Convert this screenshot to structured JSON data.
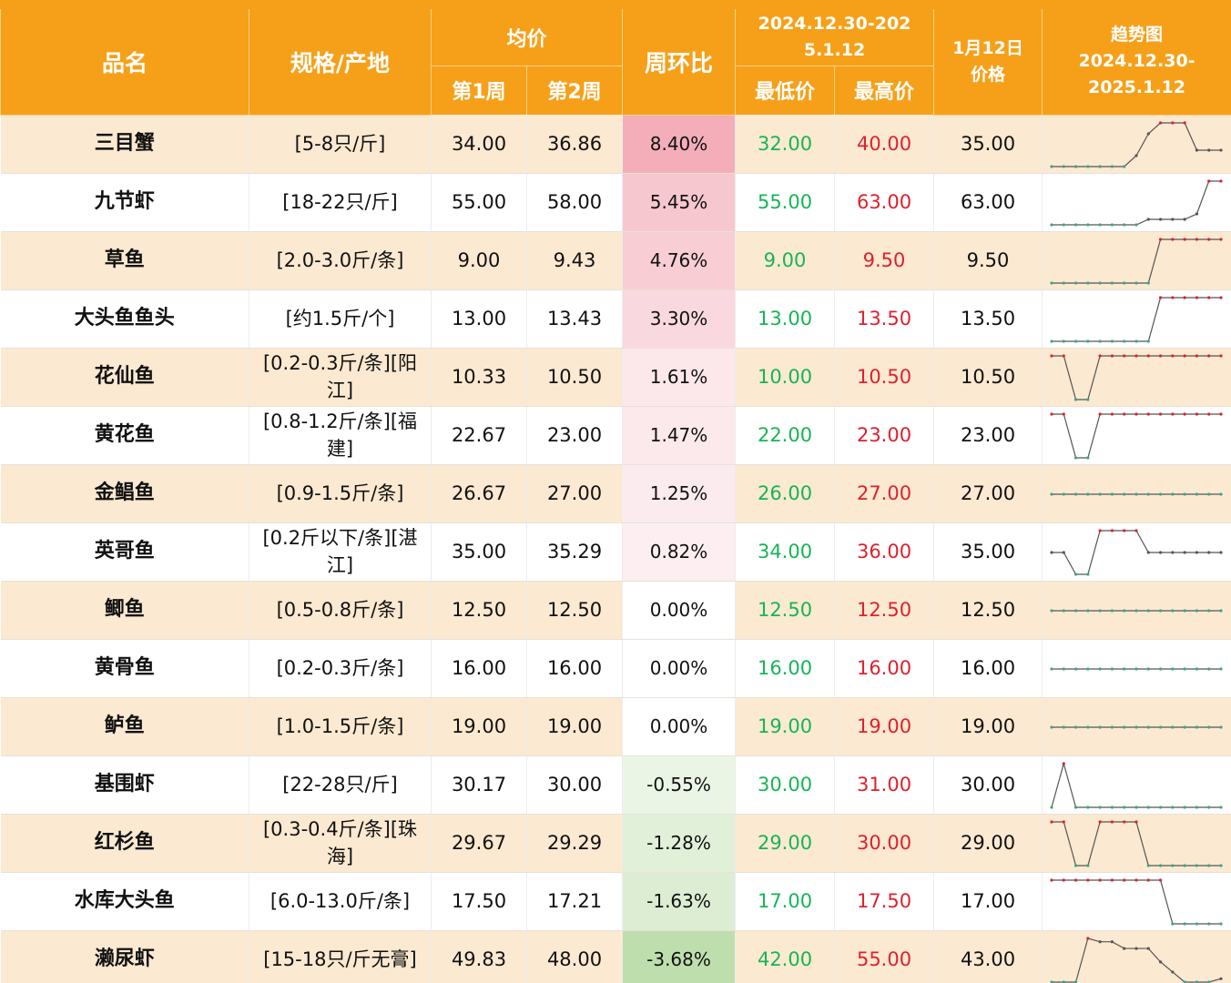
{
  "header": {
    "col_name": "品名",
    "col_spec": "规格/产地",
    "col_avg": "均价",
    "col_week1": "第1周",
    "col_week2": "第2周",
    "col_wow": "周环比",
    "col_range": "2024.12.30-2025.1.12",
    "col_low": "最低价",
    "col_high": "最高价",
    "col_today_l1": "1月12日",
    "col_today_l2": "价格",
    "col_trend_l1": "趋势图",
    "col_trend_l2": "2024.12.30-",
    "col_trend_l3": "2025.1.12"
  },
  "colors": {
    "header_bg": "#f6a019",
    "row_alt_bg": "#fbe9d1",
    "low_price": "#16b556",
    "high_price": "#e0202e",
    "positive_change": "#f4b8c0",
    "negative_change": "#c6e2b8"
  },
  "rows": [
    {
      "name": "三目蟹",
      "spec": "[5-8只/斤]",
      "w1": "34.00",
      "w2": "36.86",
      "wow": "8.40%",
      "low": "32.00",
      "high": "40.00",
      "jan12": "35.00",
      "wow_value": 8.4,
      "trend": [
        32,
        32,
        32,
        32,
        32,
        32,
        32,
        34,
        38,
        40,
        40,
        40,
        35,
        35,
        35
      ]
    },
    {
      "name": "九节虾",
      "spec": "[18-22只/斤]",
      "w1": "55.00",
      "w2": "58.00",
      "wow": "5.45%",
      "low": "55.00",
      "high": "63.00",
      "jan12": "63.00",
      "wow_value": 5.45,
      "trend": [
        55,
        55,
        55,
        55,
        55,
        55,
        55,
        55,
        56,
        56,
        56,
        56,
        57,
        63,
        63
      ]
    },
    {
      "name": "草鱼",
      "spec": "[2.0-3.0斤/条]",
      "w1": "9.00",
      "w2": "9.43",
      "wow": "4.76%",
      "low": "9.00",
      "high": "9.50",
      "jan12": "9.50",
      "wow_value": 4.76,
      "trend": [
        9,
        9,
        9,
        9,
        9,
        9,
        9,
        9,
        9,
        9.5,
        9.5,
        9.5,
        9.5,
        9.5,
        9.5
      ]
    },
    {
      "name": "大头鱼鱼头",
      "spec": "[约1.5斤/个]",
      "w1": "13.00",
      "w2": "13.43",
      "wow": "3.30%",
      "low": "13.00",
      "high": "13.50",
      "jan12": "13.50",
      "wow_value": 3.3,
      "trend": [
        13,
        13,
        13,
        13,
        13,
        13,
        13,
        13,
        13,
        13.5,
        13.5,
        13.5,
        13.5,
        13.5,
        13.5
      ]
    },
    {
      "name": "花仙鱼",
      "spec": "[0.2-0.3斤/条][阳江]",
      "w1": "10.33",
      "w2": "10.50",
      "wow": "1.61%",
      "low": "10.00",
      "high": "10.50",
      "jan12": "10.50",
      "wow_value": 1.61,
      "trend": [
        10.5,
        10.5,
        10,
        10,
        10.5,
        10.5,
        10.5,
        10.5,
        10.5,
        10.5,
        10.5,
        10.5,
        10.5,
        10.5,
        10.5
      ]
    },
    {
      "name": "黄花鱼",
      "spec": "[0.8-1.2斤/条][福建]",
      "w1": "22.67",
      "w2": "23.00",
      "wow": "1.47%",
      "low": "22.00",
      "high": "23.00",
      "jan12": "23.00",
      "wow_value": 1.47,
      "trend": [
        23,
        23,
        22,
        22,
        23,
        23,
        23,
        23,
        23,
        23,
        23,
        23,
        23,
        23,
        23
      ]
    },
    {
      "name": "金鲳鱼",
      "spec": "[0.9-1.5斤/条]",
      "w1": "26.67",
      "w2": "27.00",
      "wow": "1.25%",
      "low": "26.00",
      "high": "27.00",
      "jan12": "27.00",
      "wow_value": 1.25,
      "trend": [
        27,
        27,
        27,
        27,
        27,
        27,
        27,
        27,
        27,
        27,
        27,
        27,
        27,
        27,
        27
      ]
    },
    {
      "name": "英哥鱼",
      "spec": "[0.2斤以下/条][湛江]",
      "w1": "35.00",
      "w2": "35.29",
      "wow": "0.82%",
      "low": "34.00",
      "high": "36.00",
      "jan12": "35.00",
      "wow_value": 0.82,
      "trend": [
        35,
        35,
        34,
        34,
        36,
        36,
        36,
        36,
        35,
        35,
        35,
        35,
        35,
        35,
        35
      ]
    },
    {
      "name": "鲫鱼",
      "spec": "[0.5-0.8斤/条]",
      "w1": "12.50",
      "w2": "12.50",
      "wow": "0.00%",
      "low": "12.50",
      "high": "12.50",
      "jan12": "12.50",
      "wow_value": 0,
      "trend": [
        12.5,
        12.5,
        12.5,
        12.5,
        12.5,
        12.5,
        12.5,
        12.5,
        12.5,
        12.5,
        12.5,
        12.5,
        12.5,
        12.5,
        12.5
      ]
    },
    {
      "name": "黄骨鱼",
      "spec": "[0.2-0.3斤/条]",
      "w1": "16.00",
      "w2": "16.00",
      "wow": "0.00%",
      "low": "16.00",
      "high": "16.00",
      "jan12": "16.00",
      "wow_value": 0,
      "trend": [
        16,
        16,
        16,
        16,
        16,
        16,
        16,
        16,
        16,
        16,
        16,
        16,
        16,
        16,
        16
      ]
    },
    {
      "name": "鲈鱼",
      "spec": "[1.0-1.5斤/条]",
      "w1": "19.00",
      "w2": "19.00",
      "wow": "0.00%",
      "low": "19.00",
      "high": "19.00",
      "jan12": "19.00",
      "wow_value": 0,
      "trend": [
        19,
        19,
        19,
        19,
        19,
        19,
        19,
        19,
        19,
        19,
        19,
        19,
        19,
        19,
        19
      ]
    },
    {
      "name": "基围虾",
      "spec": "[22-28只/斤]",
      "w1": "30.17",
      "w2": "30.00",
      "wow": "-0.55%",
      "low": "30.00",
      "high": "31.00",
      "jan12": "30.00",
      "wow_value": -0.55,
      "trend": [
        30,
        31,
        30,
        30,
        30,
        30,
        30,
        30,
        30,
        30,
        30,
        30,
        30,
        30,
        30
      ]
    },
    {
      "name": "红杉鱼",
      "spec": "[0.3-0.4斤/条][珠海]",
      "w1": "29.67",
      "w2": "29.29",
      "wow": "-1.28%",
      "low": "29.00",
      "high": "30.00",
      "jan12": "29.00",
      "wow_value": -1.28,
      "trend": [
        30,
        30,
        29,
        29,
        30,
        30,
        30,
        30,
        29,
        29,
        29,
        29,
        29,
        29,
        29
      ]
    },
    {
      "name": "水库大头鱼",
      "spec": "[6.0-13.0斤/条]",
      "w1": "17.50",
      "w2": "17.21",
      "wow": "-1.63%",
      "low": "17.00",
      "high": "17.50",
      "jan12": "17.00",
      "wow_value": -1.63,
      "trend": [
        17.5,
        17.5,
        17.5,
        17.5,
        17.5,
        17.5,
        17.5,
        17.5,
        17.5,
        17.5,
        17,
        17,
        17,
        17,
        17
      ]
    },
    {
      "name": "濑尿虾",
      "spec": "[15-18只/斤无膏]",
      "w1": "49.83",
      "w2": "48.00",
      "wow": "-3.68%",
      "low": "42.00",
      "high": "55.00",
      "jan12": "43.00",
      "wow_value": -3.68,
      "trend": [
        42,
        42,
        42,
        55,
        54,
        54,
        52,
        52,
        52,
        48,
        45,
        42,
        42,
        42,
        43
      ]
    }
  ]
}
